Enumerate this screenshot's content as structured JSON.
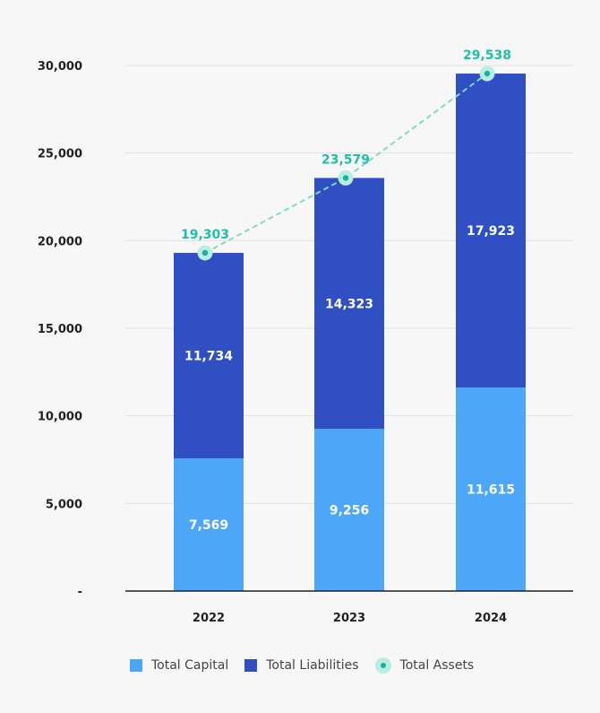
{
  "chart_data": {
    "type": "bar",
    "stacked": true,
    "categories": [
      "2022",
      "2023",
      "2024"
    ],
    "series": [
      {
        "name": "Total Capital",
        "kind": "bar",
        "color": "#4da6f7",
        "values": [
          7569,
          9256,
          11615
        ],
        "labels": [
          "7,569",
          "9,256",
          "11,615"
        ]
      },
      {
        "name": "Total Liabilities",
        "kind": "bar",
        "color": "#2f4fc3",
        "values": [
          11734,
          14323,
          17923
        ],
        "labels": [
          "11,734",
          "14,323",
          "17,923"
        ]
      },
      {
        "name": "Total Assets",
        "kind": "line-dashed",
        "color": "#1fbfa6",
        "values": [
          19303,
          23579,
          29538
        ],
        "labels": [
          "19,303",
          "23,579",
          "29,538"
        ]
      }
    ],
    "yticks": [
      {
        "value": 0,
        "label": "-"
      },
      {
        "value": 5000,
        "label": "5,000"
      },
      {
        "value": 10000,
        "label": "10,000"
      },
      {
        "value": 15000,
        "label": "15,000"
      },
      {
        "value": 20000,
        "label": "20,000"
      },
      {
        "value": 25000,
        "label": "25,000"
      },
      {
        "value": 30000,
        "label": "30,000"
      }
    ],
    "ylim": [
      0,
      30000
    ],
    "grid": true,
    "legend_position": "bottom"
  },
  "legend": {
    "capital": "Total Capital",
    "liabilities": "Total Liabilities",
    "assets": "Total Assets"
  }
}
